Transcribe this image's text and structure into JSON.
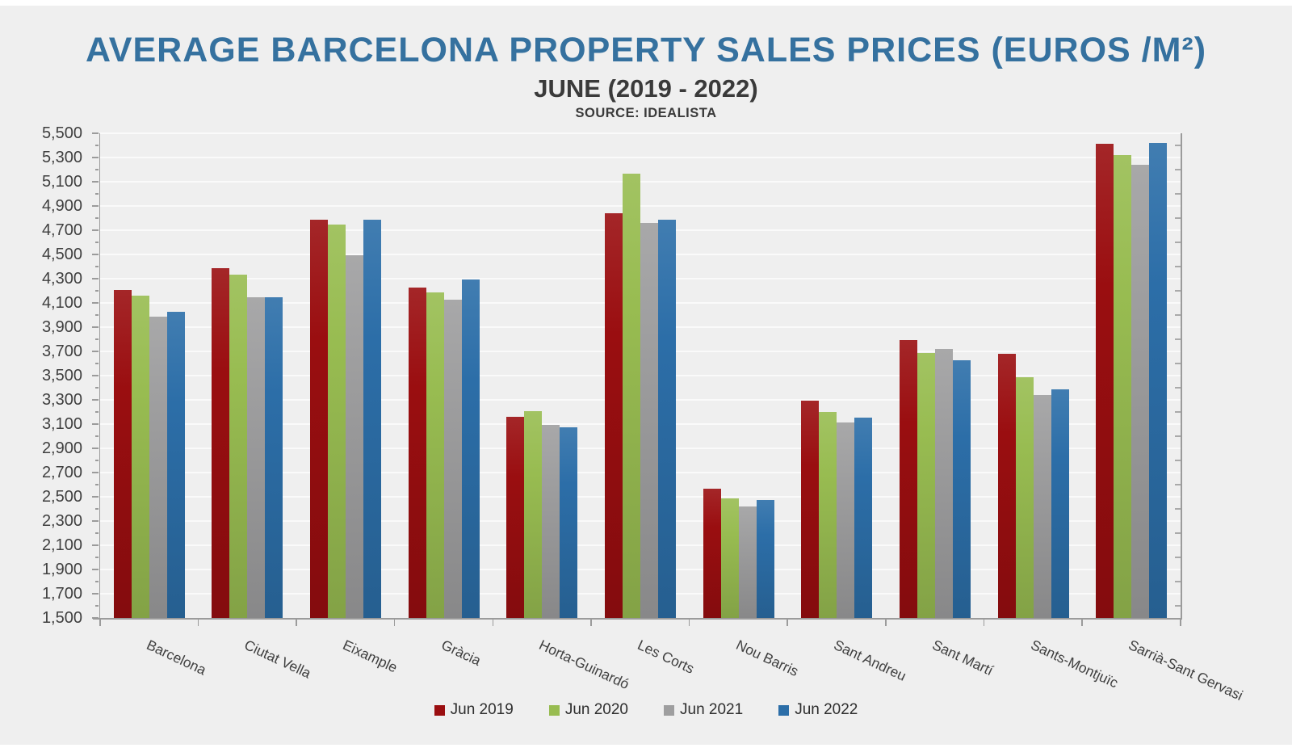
{
  "header": {
    "title": "AVERAGE BARCELONA PROPERTY SALES PRICES (EUROS /M²)",
    "subtitle": "JUNE (2019 - 2022)",
    "source": "SOURCE: IDEALISTA"
  },
  "colors": {
    "title_blue": "#35719f",
    "background": "#efefef",
    "gridline": "#fafafa",
    "axis": "#9b9b9b",
    "tick_label": "#3f3f3f"
  },
  "chart_data": {
    "type": "bar",
    "title": "AVERAGE BARCELONA PROPERTY SALES PRICES (EUROS /M²)",
    "subtitle": "JUNE (2019 - 2022)",
    "source": "SOURCE: IDEALISTA",
    "xlabel": "",
    "ylabel": "",
    "ylim": [
      1500,
      5500
    ],
    "ytick_step": 200,
    "grid": true,
    "legend_position": "bottom",
    "categories": [
      "Barcelona",
      "Ciutat Vella",
      "Eixample",
      "Gràcia",
      "Horta-Guinardó",
      "Les Corts",
      "Nou Barris",
      "Sant Andreu",
      "Sant Martí",
      "Sants-Montjuïc",
      "Sarrià-Sant Gervasi"
    ],
    "series": [
      {
        "name": "Jun 2019",
        "color": "#9a0e10",
        "values": [
          4205,
          4390,
          4790,
          4230,
          3160,
          4840,
          2570,
          3295,
          3795,
          3680,
          5412
        ]
      },
      {
        "name": "Jun 2020",
        "color": "#98bc51",
        "values": [
          4160,
          4335,
          4750,
          4185,
          3205,
          5165,
          2485,
          3200,
          3685,
          3490,
          5320
        ]
      },
      {
        "name": "Jun 2021",
        "color": "#9e9e9f",
        "values": [
          3990,
          4150,
          4495,
          4130,
          3095,
          4760,
          2420,
          3115,
          3720,
          3340,
          5240
        ]
      },
      {
        "name": "Jun 2022",
        "color": "#2c6ea8",
        "values": [
          4030,
          4145,
          4785,
          4295,
          3075,
          4790,
          2475,
          3155,
          3630,
          3385,
          5418
        ]
      }
    ]
  }
}
